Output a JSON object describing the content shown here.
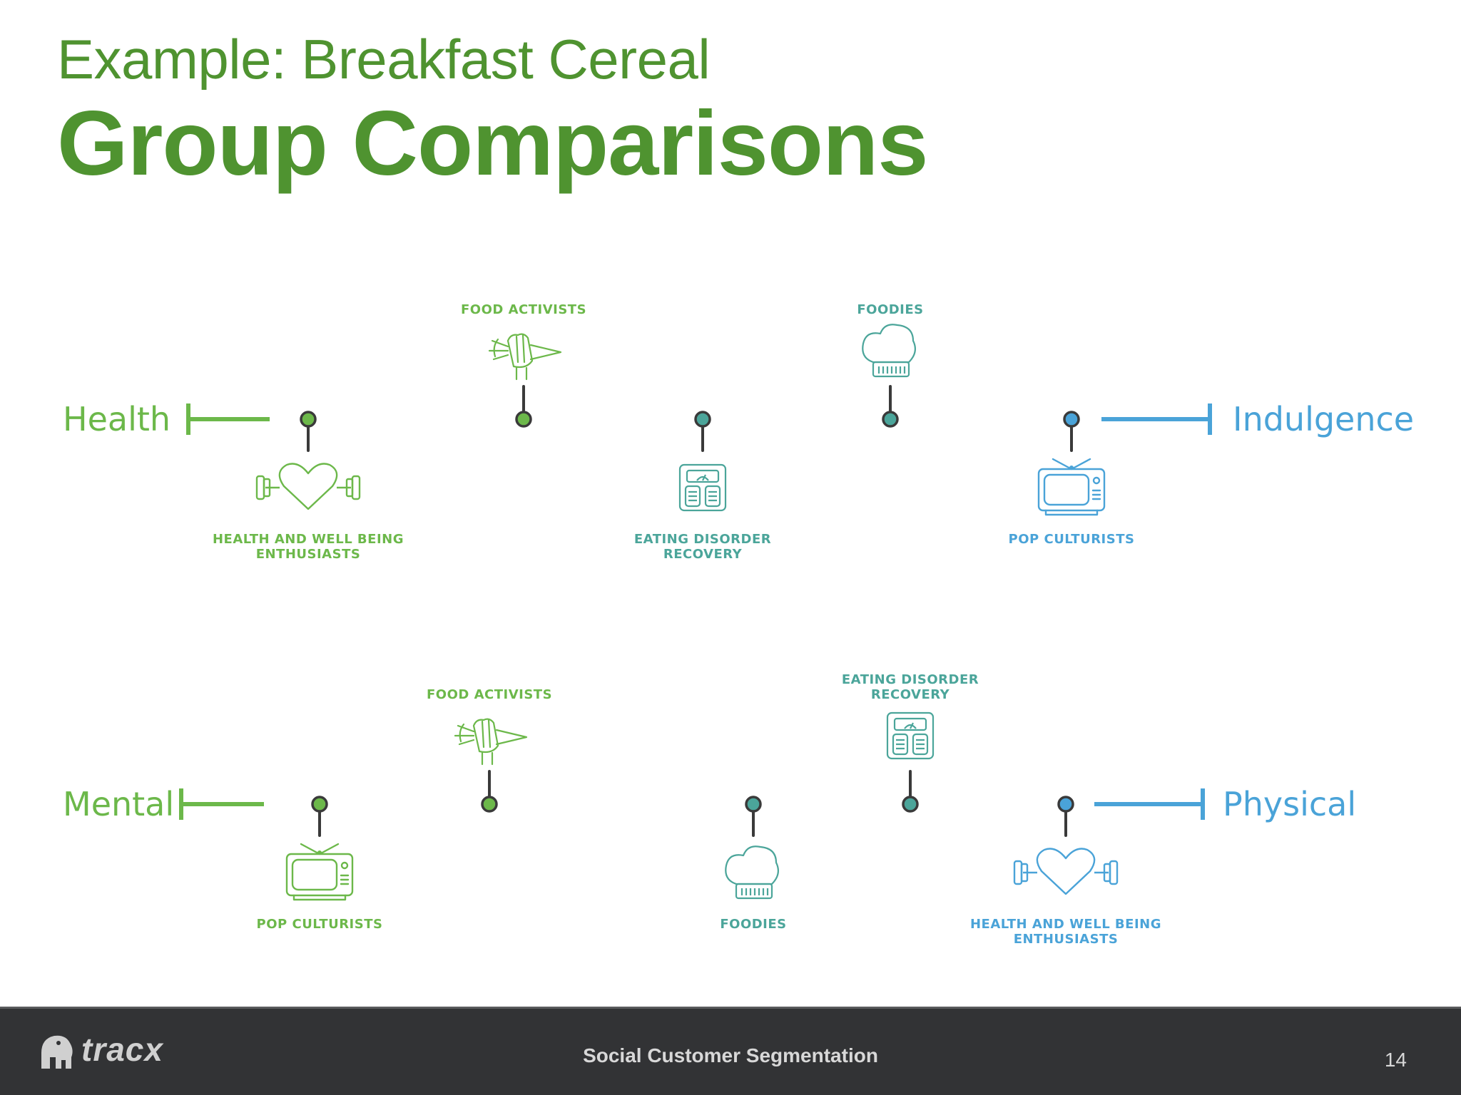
{
  "header": {
    "subtitle": "Example: Breakfast Cereal",
    "title": "Group Comparisons"
  },
  "colors": {
    "green": "#6cb84a",
    "green_dark": "#4f9330",
    "teal": "#4ba59a",
    "blue": "#4aa3d8",
    "stem": "#3a3a3a",
    "footer_bg": "#323335"
  },
  "scales": [
    {
      "left_label": "Health",
      "right_label": "Indulgence",
      "groups": [
        {
          "label": [
            "HEALTH AND WELL BEING",
            "ENTHUSIASTS"
          ],
          "icon": "dumbbell-heart-icon",
          "side": "below",
          "tone": "green"
        },
        {
          "label": [
            "FOOD ACTIVISTS"
          ],
          "icon": "fist-carrot-icon",
          "side": "above",
          "tone": "green"
        },
        {
          "label": [
            "EATING DISORDER",
            "RECOVERY"
          ],
          "icon": "scale-icon",
          "side": "below",
          "tone": "teal"
        },
        {
          "label": [
            "FOODIES"
          ],
          "icon": "chef-hat-icon",
          "side": "above",
          "tone": "teal"
        },
        {
          "label": [
            "POP CULTURISTS"
          ],
          "icon": "tv-icon",
          "side": "below",
          "tone": "blue"
        }
      ]
    },
    {
      "left_label": "Mental",
      "right_label": "Physical",
      "groups": [
        {
          "label": [
            "POP CULTURISTS"
          ],
          "icon": "tv-icon",
          "side": "below",
          "tone": "green"
        },
        {
          "label": [
            "FOOD ACTIVISTS"
          ],
          "icon": "fist-carrot-icon",
          "side": "above",
          "tone": "green"
        },
        {
          "label": [
            "FOODIES"
          ],
          "icon": "chef-hat-icon",
          "side": "below",
          "tone": "teal"
        },
        {
          "label": [
            "EATING DISORDER",
            "RECOVERY"
          ],
          "icon": "scale-icon",
          "side": "above",
          "tone": "teal"
        },
        {
          "label": [
            "HEALTH AND WELL BEING",
            "ENTHUSIASTS"
          ],
          "icon": "dumbbell-heart-icon",
          "side": "below",
          "tone": "blue"
        }
      ]
    }
  ],
  "footer": {
    "logo_text": "tracx",
    "center_text": "Social Customer Segmentation",
    "page_number": "14"
  }
}
